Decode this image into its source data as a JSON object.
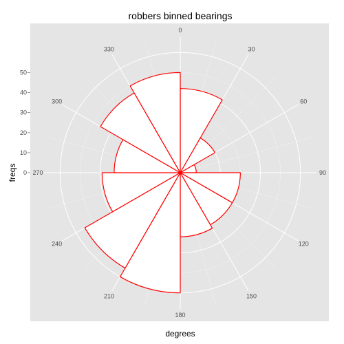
{
  "chart_data": {
    "type": "polar-bar",
    "title": "robbers binned bearings",
    "xlabel": "degrees",
    "ylabel": "freqs",
    "bin_width_deg": 30,
    "bins": [
      {
        "start": 0,
        "value": 42
      },
      {
        "start": 30,
        "value": 20
      },
      {
        "start": 60,
        "value": 8
      },
      {
        "start": 90,
        "value": 30
      },
      {
        "start": 120,
        "value": 30
      },
      {
        "start": 150,
        "value": 32
      },
      {
        "start": 180,
        "value": 60
      },
      {
        "start": 210,
        "value": 55
      },
      {
        "start": 240,
        "value": 39
      },
      {
        "start": 270,
        "value": 33
      },
      {
        "start": 300,
        "value": 46
      },
      {
        "start": 330,
        "value": 50
      }
    ],
    "angle_ticks": [
      "0",
      "30",
      "60",
      "90",
      "120",
      "150",
      "180",
      "210",
      "240",
      "270",
      "300",
      "330"
    ],
    "radial_ticks": [
      "0",
      "10",
      "20",
      "30",
      "40",
      "50"
    ],
    "radial_max": 68,
    "grid_major_r": [
      20,
      40,
      60
    ],
    "grid_minor_r": [
      10,
      30,
      50
    ],
    "outline_color": "#ff0000",
    "fill_color": "#ffffff",
    "panel_color": "#e5e5e5",
    "grid_color": "#ffffff"
  }
}
